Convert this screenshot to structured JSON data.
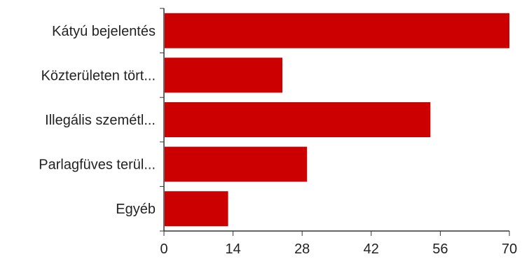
{
  "chart_data": {
    "type": "bar",
    "orientation": "horizontal",
    "categories": [
      "Kátyú bejelentés",
      "Közterületen tört...",
      "Illegális szemétl...",
      "Parlagfüves terül...",
      "Egyéb"
    ],
    "values": [
      70,
      24,
      54,
      29,
      13
    ],
    "xlim": [
      0,
      70
    ],
    "xticks": [
      0,
      14,
      28,
      42,
      56,
      70
    ],
    "grid": false,
    "legend": "none",
    "bar_color": "#cc0000",
    "axis_color": "#333333"
  }
}
